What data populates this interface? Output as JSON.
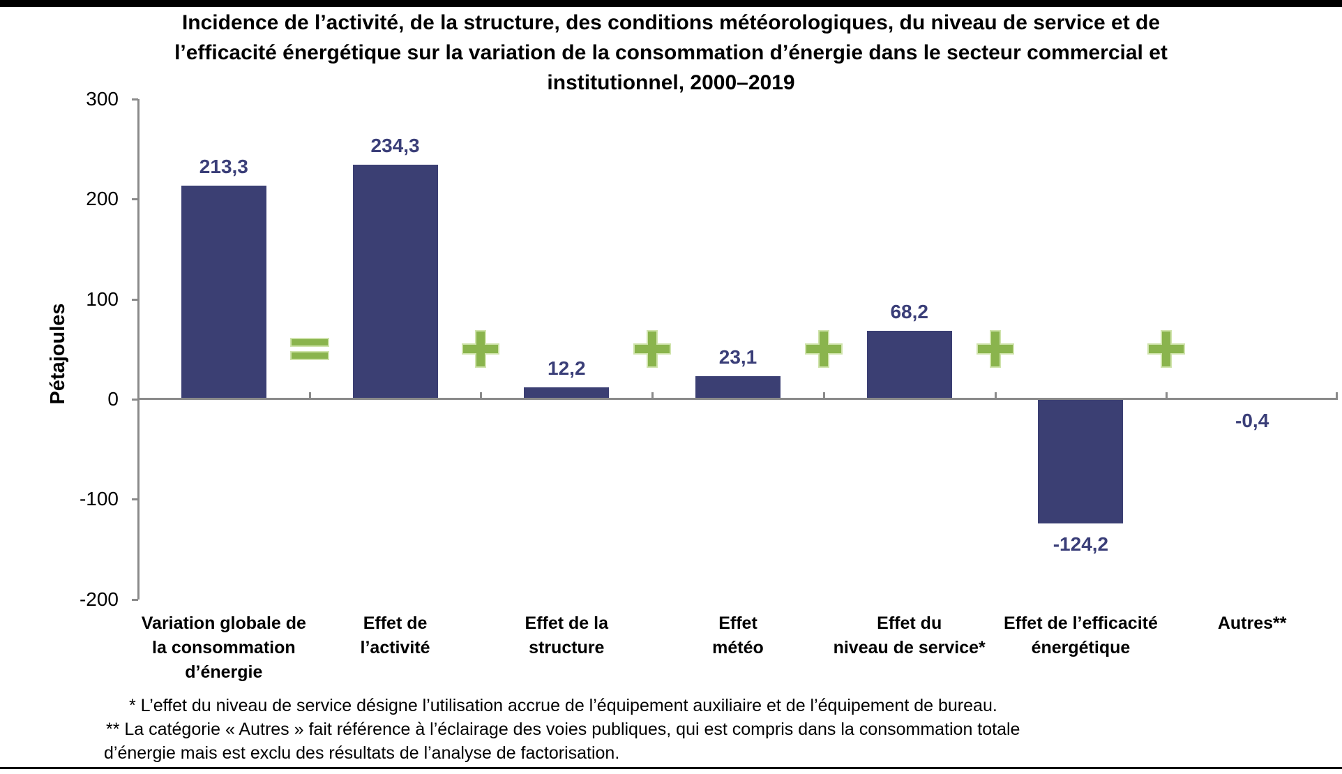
{
  "chart_data": {
    "type": "bar",
    "title_lines": [
      "Incidence de l’activité, de la structure, des conditions météorologiques, du niveau de service et de",
      "l’efficacité énergétique sur la variation de la consommation d’énergie dans le secteur commercial et",
      "institutionnel, 2000–2019"
    ],
    "title": "Incidence de l’activité, de la structure, des conditions météorologiques, du niveau de service et de l’efficacité énergétique sur la variation de la consommation d’énergie dans le secteur commercial et institutionnel, 2000–2019",
    "ylabel": "Pétajoules",
    "xlabel": "",
    "ylim": [
      -200,
      300
    ],
    "yticks": [
      300,
      200,
      100,
      0,
      -100,
      -200
    ],
    "grid": "off",
    "legend": "none",
    "categories": [
      {
        "label_lines": [
          "Variation globale de",
          "la consommation",
          "d’énergie"
        ],
        "value": 213.3,
        "value_label": "213,3"
      },
      {
        "label_lines": [
          "Effet de",
          "l’activité"
        ],
        "value": 234.3,
        "value_label": "234,3"
      },
      {
        "label_lines": [
          "Effet de la",
          "structure"
        ],
        "value": 12.2,
        "value_label": "12,2"
      },
      {
        "label_lines": [
          "Effet",
          "météo"
        ],
        "value": 23.1,
        "value_label": "23,1"
      },
      {
        "label_lines": [
          "Effet du",
          "niveau de service*"
        ],
        "value": 68.2,
        "value_label": "68,2"
      },
      {
        "label_lines": [
          "Effet de l’efficacité",
          "énergétique"
        ],
        "value": -124.2,
        "value_label": "-124,2"
      },
      {
        "label_lines": [
          "Autres**"
        ],
        "value": -0.4,
        "value_label": "-0,4"
      }
    ],
    "operators": [
      "=",
      "+",
      "+",
      "+",
      "+",
      "+"
    ],
    "colors": {
      "bar": "#3B3F73",
      "value_label": "#3A3E78",
      "operator": "#8AB44D",
      "operator_border": "#CFE3AB",
      "axis": "#8A8A8A",
      "text": "#000000"
    },
    "footnote_lines": [
      "* L’effet du niveau de service désigne l’utilisation accrue de l’équipement auxiliaire et de l’équipement de bureau.",
      "** La catégorie « Autres » fait référence à l’éclairage des voies publiques, qui est compris dans la consommation totale",
      "d’énergie mais est exclu des résultats de l’analyse de factorisation."
    ]
  }
}
